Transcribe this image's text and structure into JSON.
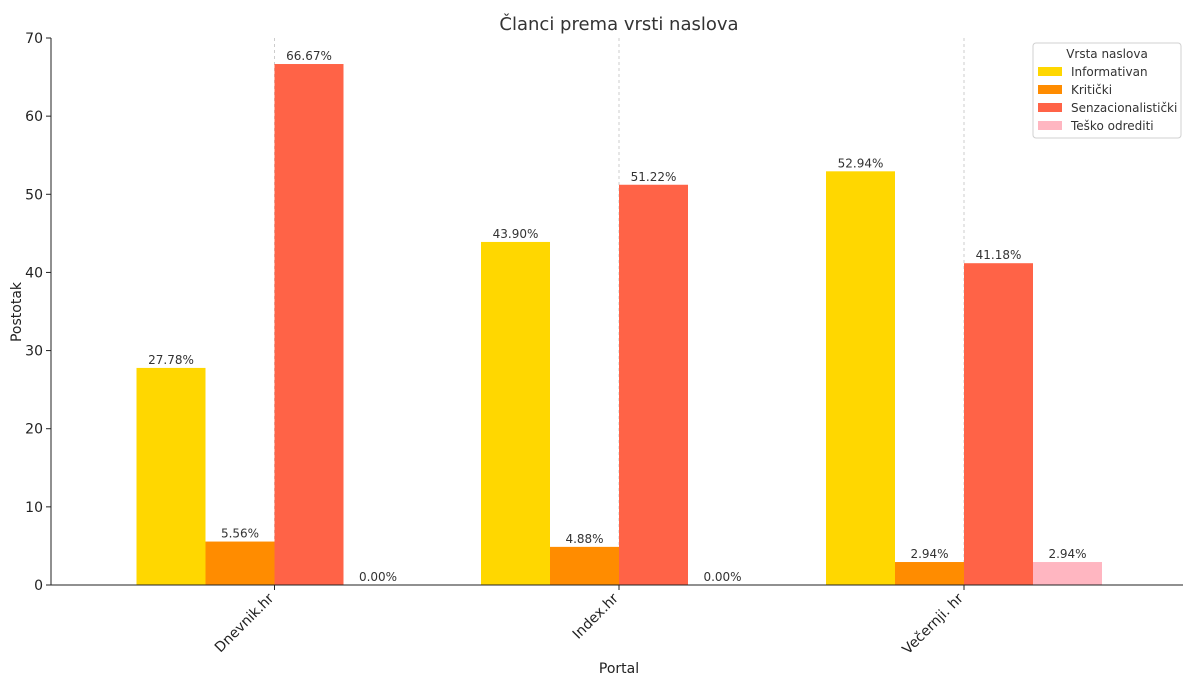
{
  "chart_data": {
    "type": "bar",
    "title": "Članci prema vrsti naslova",
    "xlabel": "Portal",
    "ylabel": "Postotak",
    "categories": [
      "Dnevnik.hr",
      "Index.hr",
      "Večernji. hr"
    ],
    "ylim": [
      0,
      70
    ],
    "yticks": [
      0,
      10,
      20,
      30,
      40,
      50,
      60,
      70
    ],
    "grid": "vertical dashed at categories",
    "legend": {
      "title": "Vrsta naslova",
      "placement": "top-right"
    },
    "series": [
      {
        "name": "Informativan",
        "color": "#FFD700",
        "values": [
          27.78,
          43.9,
          52.94
        ],
        "labels": [
          "27.78%",
          "43.90%",
          "52.94%"
        ]
      },
      {
        "name": "Kritički",
        "color": "#FF8C00",
        "values": [
          5.56,
          4.88,
          2.94
        ],
        "labels": [
          "5.56%",
          "4.88%",
          "2.94%"
        ]
      },
      {
        "name": "Senzacionalistički",
        "color": "#FF6347",
        "values": [
          66.67,
          51.22,
          41.18
        ],
        "labels": [
          "66.67%",
          "51.22%",
          "41.18%"
        ]
      },
      {
        "name": "Teško odrediti",
        "color": "#FFB6C1",
        "values": [
          0.0,
          0.0,
          2.94
        ],
        "labels": [
          "0.00%",
          "0.00%",
          "2.94%"
        ]
      }
    ]
  }
}
